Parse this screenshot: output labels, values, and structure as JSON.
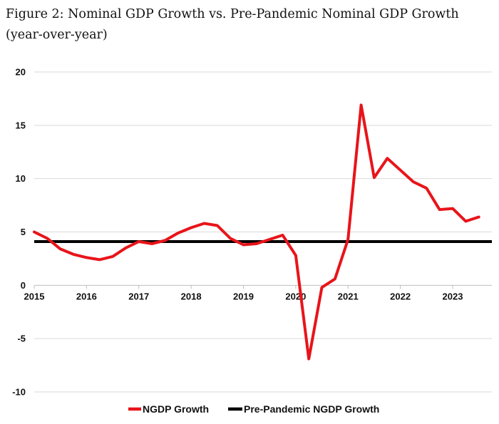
{
  "chart_data": {
    "type": "line",
    "title": "Figure 2: Nominal GDP Growth vs. Pre-Pandemic Nominal GDP Growth (year-over-year)",
    "xlabel": "",
    "ylabel": "",
    "ylim": [
      -10,
      20
    ],
    "yticks": [
      20,
      15,
      10,
      5,
      0,
      -5,
      -10
    ],
    "ytick_labels": [
      "20",
      "15",
      "10",
      "5",
      "0",
      "-5",
      "-10"
    ],
    "xlim": [
      2015,
      2023.75
    ],
    "xticks": [
      2015,
      2016,
      2017,
      2018,
      2019,
      2020,
      2021,
      2022,
      2023
    ],
    "xtick_labels": [
      "2015",
      "2016",
      "2017",
      "2018",
      "2019",
      "2020",
      "2021",
      "2022",
      "2023"
    ],
    "grid": true,
    "legend_position": "bottom",
    "colors": {
      "ngdp": "#e8141a",
      "prepandemic": "#000000",
      "grid": "#d9d9d9"
    },
    "series": [
      {
        "name": "NGDP Growth",
        "x": [
          2015.0,
          2015.25,
          2015.5,
          2015.75,
          2016.0,
          2016.25,
          2016.5,
          2016.75,
          2017.0,
          2017.25,
          2017.5,
          2017.75,
          2018.0,
          2018.25,
          2018.5,
          2018.75,
          2019.0,
          2019.25,
          2019.5,
          2019.75,
          2020.0,
          2020.25,
          2020.5,
          2020.75,
          2021.0,
          2021.25,
          2021.5,
          2021.75,
          2022.0,
          2022.25,
          2022.5,
          2022.75,
          2023.0,
          2023.25,
          2023.5
        ],
        "values": [
          5.0,
          4.4,
          3.4,
          2.9,
          2.6,
          2.4,
          2.7,
          3.5,
          4.1,
          3.9,
          4.2,
          4.9,
          5.4,
          5.8,
          5.6,
          4.4,
          3.8,
          3.9,
          4.3,
          4.7,
          2.8,
          -6.9,
          -0.2,
          0.6,
          4.3,
          16.9,
          10.1,
          11.9,
          10.8,
          9.7,
          9.1,
          7.1,
          7.2,
          6.0,
          6.4
        ]
      },
      {
        "name": "Pre-Pandemic NGDP Growth",
        "x": [
          2015.0,
          2023.75
        ],
        "values": [
          4.1,
          4.1
        ]
      }
    ]
  }
}
